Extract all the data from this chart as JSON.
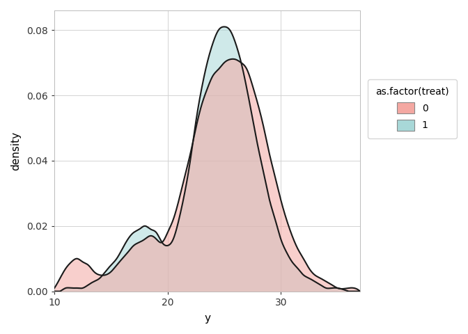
{
  "title": "",
  "xlabel": "y",
  "ylabel": "density",
  "legend_title": "as.factor(treat)",
  "legend_labels": [
    "0",
    "1"
  ],
  "xlim": [
    10,
    37
  ],
  "ylim": [
    0,
    0.086
  ],
  "yticks": [
    0.0,
    0.02,
    0.04,
    0.06,
    0.08
  ],
  "xticks": [
    10,
    20,
    30
  ],
  "color_0_fill": "#F4A8A2",
  "color_1_fill": "#A8D8D8",
  "fill_alpha_0": 0.55,
  "fill_alpha_1": 0.55,
  "line_color": "#1a1a1a",
  "line_width": 1.5,
  "bg_color": "#FFFFFF",
  "panel_bg": "#FFFFFF",
  "grid_color": "#D3D3D3",
  "grid_lw": 0.7,
  "group0_x": [
    10.0,
    10.5,
    11.0,
    11.5,
    12.0,
    12.5,
    13.0,
    13.5,
    14.0,
    14.5,
    15.0,
    15.5,
    16.0,
    16.5,
    17.0,
    17.5,
    18.0,
    18.5,
    19.0,
    19.5,
    20.0,
    20.5,
    21.0,
    21.5,
    22.0,
    22.5,
    23.0,
    23.5,
    24.0,
    24.5,
    25.0,
    25.5,
    26.0,
    26.5,
    27.0,
    27.5,
    28.0,
    28.5,
    29.0,
    29.5,
    30.0,
    30.5,
    31.0,
    31.5,
    32.0,
    32.5,
    33.0,
    33.5,
    34.0,
    34.5,
    35.0,
    36.0,
    37.0
  ],
  "group0_y": [
    0.001,
    0.004,
    0.007,
    0.009,
    0.01,
    0.009,
    0.008,
    0.006,
    0.005,
    0.005,
    0.006,
    0.008,
    0.01,
    0.012,
    0.014,
    0.015,
    0.016,
    0.017,
    0.016,
    0.015,
    0.018,
    0.022,
    0.028,
    0.035,
    0.042,
    0.05,
    0.057,
    0.062,
    0.066,
    0.068,
    0.07,
    0.071,
    0.071,
    0.07,
    0.068,
    0.063,
    0.057,
    0.05,
    0.042,
    0.035,
    0.028,
    0.022,
    0.017,
    0.013,
    0.01,
    0.007,
    0.005,
    0.004,
    0.003,
    0.002,
    0.001,
    0.001,
    0.0
  ],
  "group1_x": [
    10.0,
    10.5,
    11.0,
    11.5,
    12.0,
    12.5,
    13.0,
    13.5,
    14.0,
    14.5,
    15.0,
    15.5,
    16.0,
    16.5,
    17.0,
    17.5,
    18.0,
    18.5,
    19.0,
    19.5,
    20.0,
    20.5,
    21.0,
    21.5,
    22.0,
    22.5,
    23.0,
    23.5,
    24.0,
    24.5,
    25.0,
    25.5,
    26.0,
    26.5,
    27.0,
    27.5,
    28.0,
    28.5,
    29.0,
    29.5,
    30.0,
    30.5,
    31.0,
    31.5,
    32.0,
    32.5,
    33.0,
    33.5,
    34.0,
    34.5,
    35.0,
    36.0,
    37.0
  ],
  "group1_y": [
    0.0,
    0.0,
    0.001,
    0.001,
    0.001,
    0.001,
    0.002,
    0.003,
    0.004,
    0.006,
    0.008,
    0.01,
    0.013,
    0.016,
    0.018,
    0.019,
    0.02,
    0.019,
    0.018,
    0.015,
    0.014,
    0.016,
    0.022,
    0.03,
    0.04,
    0.052,
    0.062,
    0.07,
    0.076,
    0.08,
    0.081,
    0.08,
    0.076,
    0.07,
    0.062,
    0.053,
    0.044,
    0.036,
    0.028,
    0.022,
    0.016,
    0.012,
    0.009,
    0.007,
    0.005,
    0.004,
    0.003,
    0.002,
    0.001,
    0.001,
    0.001,
    0.0,
    0.0
  ]
}
